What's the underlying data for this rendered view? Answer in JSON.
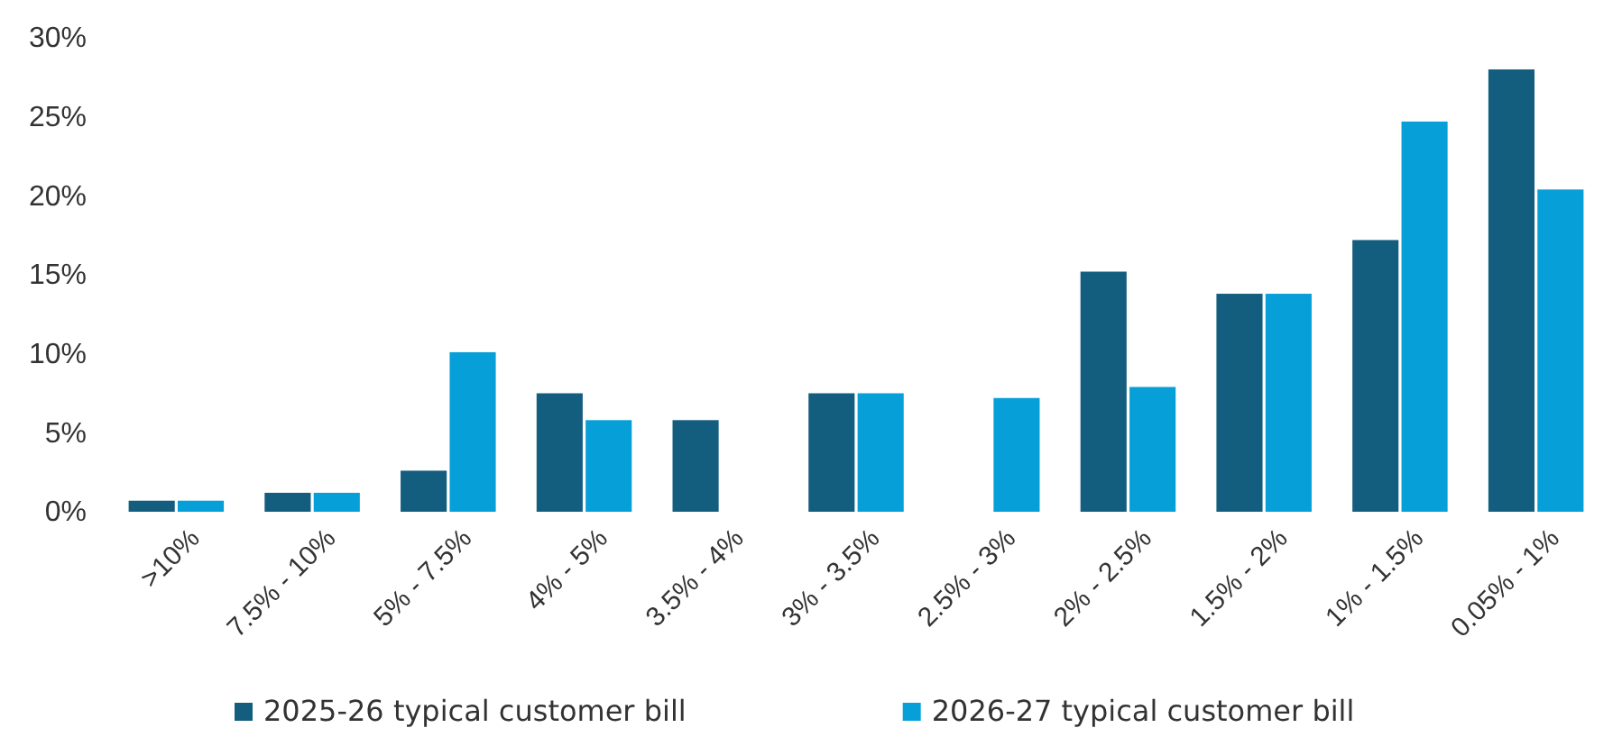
{
  "chart_data": {
    "type": "bar",
    "categories": [
      ">10%",
      "7.5% - 10%",
      "5% - 7.5%",
      "4% - 5%",
      "3.5% - 4%",
      "3% - 3.5%",
      "2.5% - 3%",
      "2% - 2.5%",
      "1.5% - 2%",
      "1% - 1.5%",
      "0.05% - 1%"
    ],
    "series": [
      {
        "name": "2025-26 typical customer bill",
        "color": "#135e7e",
        "values": [
          0.7,
          1.2,
          2.6,
          7.5,
          5.8,
          7.5,
          0,
          15.2,
          13.8,
          17.2,
          28.0
        ]
      },
      {
        "name": "2026-27 typical customer bill",
        "color": "#079fd8",
        "values": [
          0.7,
          1.2,
          10.1,
          5.8,
          0,
          7.5,
          7.2,
          7.9,
          13.8,
          24.7,
          20.4
        ]
      }
    ],
    "ylim": [
      0,
      30
    ],
    "yticks": [
      {
        "value": 0,
        "label": "0%"
      },
      {
        "value": 5,
        "label": "5%"
      },
      {
        "value": 10,
        "label": "10%"
      },
      {
        "value": 15,
        "label": "15%"
      },
      {
        "value": 20,
        "label": "20%"
      },
      {
        "value": 25,
        "label": "25%"
      },
      {
        "value": 30,
        "label": "30%"
      }
    ],
    "grid": false,
    "legend": "bottom"
  }
}
